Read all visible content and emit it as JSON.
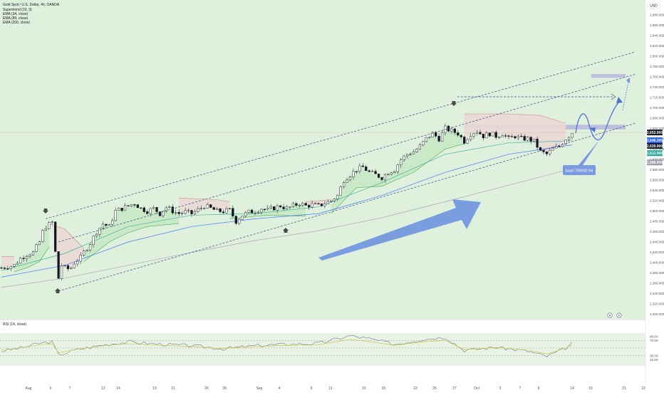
{
  "legend": {
    "title": "Gold Spot / U.S. Dollar, 4h, OANDA",
    "indicators": [
      "Supertrend (10, 3)",
      "EMA (34, close)",
      "EMA (89, close)",
      "EMA (200, close)"
    ]
  },
  "currency": "USD",
  "annotation": {
    "text": "touch TREND H4"
  },
  "rsi": {
    "label": "RSI (14, close)"
  },
  "colors": {
    "bg_green": "#dff1dd",
    "candle": "#131722",
    "supertrend_green_fill": "#c8e8c4",
    "supertrend_red_fill": "#ead8d4",
    "ema34": "#26a69a",
    "ema89": "#2962ff",
    "ema200": "#9e9aa8",
    "channel": "#3c4a8a",
    "arrow": "#6f93e0",
    "zone": "#b8b6dc",
    "rsi_line": "#787b86",
    "rsi_ma": "#d2c02a"
  },
  "chart_data": [
    {
      "type": "line",
      "series_kind": "candlestick",
      "x_ticks": [
        "Aug",
        "5",
        "7",
        "12",
        "14",
        "19",
        "21",
        "26",
        "28",
        "Sep",
        "4",
        "9",
        "11",
        "16",
        "18",
        "23",
        "25",
        "27",
        "Oct",
        "3",
        "7",
        "9",
        "14",
        "16",
        "21",
        "23"
      ],
      "y_ticks": [
        "2,880.000",
        "2,860.000",
        "2,840.000",
        "2,820.000",
        "2,800.000",
        "2,780.000",
        "2,760.000",
        "2,740.000",
        "2,720.000",
        "2,700.000",
        "2,680.000",
        "2,660.000",
        "2,640.000",
        "2,620.000",
        "2,600.000",
        "2,580.000",
        "2,560.000",
        "2,540.000",
        "2,520.000",
        "2,500.000",
        "2,480.000",
        "2,460.000",
        "2,440.000",
        "2,420.000",
        "2,400.000",
        "2,380.000",
        "2,360.000",
        "2,340.000",
        "2,320.000",
        "2,300.000"
      ],
      "ylim": [
        2294,
        2903
      ],
      "price_tags": [
        {
          "label": "2,652.000",
          "value": 2652,
          "color": "#131722"
        },
        {
          "label": "2,646.200",
          "value": 2637,
          "color": "#2962ff"
        },
        {
          "label": "2,630.000",
          "value": 2626,
          "color": "#131722"
        },
        {
          "label": "2,612.000",
          "value": 2612,
          "color": "#26a69a"
        },
        {
          "label": "2,588.500",
          "value": 2594,
          "color": "#9e9aa8"
        }
      ],
      "close_path": [
        [
          0,
          2390
        ],
        [
          4,
          2395
        ],
        [
          6,
          2408
        ],
        [
          8,
          2416
        ],
        [
          10,
          2420
        ],
        [
          12,
          2440
        ],
        [
          13,
          2460
        ],
        [
          14,
          2470
        ],
        [
          16,
          2478
        ],
        [
          17,
          2420
        ],
        [
          18,
          2370
        ],
        [
          19,
          2395
        ],
        [
          20,
          2390
        ],
        [
          21,
          2388
        ],
        [
          22,
          2390
        ],
        [
          23,
          2400
        ],
        [
          25,
          2410
        ],
        [
          26,
          2420
        ],
        [
          28,
          2438
        ],
        [
          30,
          2460
        ],
        [
          32,
          2475
        ],
        [
          34,
          2470
        ],
        [
          36,
          2500
        ],
        [
          38,
          2505
        ],
        [
          40,
          2510
        ],
        [
          42,
          2515
        ],
        [
          44,
          2505
        ],
        [
          46,
          2500
        ],
        [
          48,
          2505
        ],
        [
          50,
          2495
        ],
        [
          52,
          2508
        ],
        [
          54,
          2500
        ],
        [
          56,
          2495
        ],
        [
          58,
          2498
        ],
        [
          60,
          2495
        ],
        [
          62,
          2502
        ],
        [
          64,
          2510
        ],
        [
          66,
          2505
        ],
        [
          68,
          2500
        ],
        [
          70,
          2499
        ],
        [
          72,
          2502
        ],
        [
          74,
          2480
        ],
        [
          76,
          2492
        ],
        [
          78,
          2498
        ],
        [
          80,
          2500
        ],
        [
          82,
          2505
        ],
        [
          84,
          2502
        ],
        [
          86,
          2506
        ],
        [
          88,
          2510
        ],
        [
          90,
          2505
        ],
        [
          92,
          2510
        ],
        [
          94,
          2515
        ],
        [
          96,
          2510
        ],
        [
          98,
          2512
        ],
        [
          100,
          2510
        ],
        [
          102,
          2515
        ],
        [
          104,
          2520
        ],
        [
          106,
          2530
        ],
        [
          108,
          2560
        ],
        [
          110,
          2570
        ],
        [
          112,
          2580
        ],
        [
          114,
          2585
        ],
        [
          116,
          2575
        ],
        [
          118,
          2570
        ],
        [
          120,
          2565
        ],
        [
          122,
          2575
        ],
        [
          124,
          2580
        ],
        [
          126,
          2600
        ],
        [
          128,
          2610
        ],
        [
          130,
          2615
        ],
        [
          132,
          2625
        ],
        [
          134,
          2640
        ],
        [
          136,
          2650
        ],
        [
          138,
          2640
        ],
        [
          140,
          2660
        ],
        [
          142,
          2655
        ],
        [
          144,
          2650
        ],
        [
          146,
          2635
        ],
        [
          148,
          2650
        ],
        [
          150,
          2655
        ],
        [
          152,
          2645
        ],
        [
          154,
          2650
        ],
        [
          156,
          2645
        ],
        [
          158,
          2650
        ],
        [
          160,
          2640
        ],
        [
          162,
          2645
        ],
        [
          164,
          2640
        ],
        [
          166,
          2640
        ],
        [
          168,
          2635
        ],
        [
          170,
          2615
        ],
        [
          172,
          2610
        ],
        [
          174,
          2620
        ],
        [
          176,
          2625
        ],
        [
          178,
          2640
        ],
        [
          180,
          2652
        ]
      ],
      "supertrend_segments": [
        {
          "trend": "down",
          "values": [
            [
              0,
              2412
            ],
            [
              4,
              2412
            ]
          ]
        },
        {
          "trend": "up",
          "values": [
            [
              4,
              2382
            ],
            [
              8,
              2390
            ],
            [
              12,
              2402
            ],
            [
              15,
              2430
            ]
          ]
        },
        {
          "trend": "down",
          "values": [
            [
              15,
              2475
            ],
            [
              20,
              2465
            ],
            [
              24,
              2440
            ],
            [
              26,
              2428
            ]
          ]
        },
        {
          "trend": "up",
          "values": [
            [
              26,
              2402
            ],
            [
              34,
              2440
            ],
            [
              40,
              2458
            ],
            [
              46,
              2470
            ],
            [
              56,
              2476
            ]
          ]
        },
        {
          "trend": "down",
          "values": [
            [
              56,
              2525
            ],
            [
              68,
              2522
            ],
            [
              72,
              2518
            ]
          ]
        },
        {
          "trend": "up",
          "values": [
            [
              72,
              2485
            ],
            [
              84,
              2492
            ],
            [
              96,
              2490
            ]
          ]
        },
        {
          "trend": "down",
          "values": [
            [
              96,
              2518
            ],
            [
              104,
              2522
            ]
          ]
        },
        {
          "trend": "up",
          "values": [
            [
              104,
              2495
            ],
            [
              112,
              2545
            ],
            [
              120,
              2548
            ],
            [
              130,
              2575
            ],
            [
              140,
              2620
            ],
            [
              146,
              2630
            ]
          ]
        },
        {
          "trend": "down",
          "values": [
            [
              146,
              2688
            ],
            [
              160,
              2688
            ],
            [
              170,
              2685
            ],
            [
              178,
              2670
            ]
          ]
        }
      ],
      "ema34": [
        [
          0,
          2385
        ],
        [
          20,
          2418
        ],
        [
          40,
          2470
        ],
        [
          60,
          2492
        ],
        [
          80,
          2495
        ],
        [
          100,
          2508
        ],
        [
          120,
          2555
        ],
        [
          140,
          2610
        ],
        [
          160,
          2632
        ],
        [
          180,
          2636
        ]
      ],
      "ema89": [
        [
          0,
          2372
        ],
        [
          20,
          2395
        ],
        [
          40,
          2440
        ],
        [
          60,
          2470
        ],
        [
          80,
          2485
        ],
        [
          100,
          2495
        ],
        [
          120,
          2530
        ],
        [
          140,
          2575
        ],
        [
          160,
          2610
        ],
        [
          180,
          2628
        ]
      ],
      "ema200": [
        [
          0,
          2352
        ],
        [
          20,
          2370
        ],
        [
          40,
          2395
        ],
        [
          60,
          2420
        ],
        [
          80,
          2443
        ],
        [
          100,
          2462
        ],
        [
          120,
          2487
        ],
        [
          140,
          2518
        ],
        [
          160,
          2550
        ],
        [
          180,
          2582
        ]
      ],
      "channel_upper": [
        [
          14,
          2485
        ],
        [
          200,
          2808
        ]
      ],
      "channel_lower": [
        [
          18,
          2345
        ],
        [
          200,
          2670
        ]
      ],
      "channel_mid": [
        [
          18,
          2440
        ],
        [
          200,
          2765
        ]
      ],
      "resistance_zone": {
        "from": 146,
        "to": 200,
        "y0": 2660,
        "y1": 2665
      },
      "target_zone": {
        "from": 186,
        "to": 200,
        "y0": 2760,
        "y1": 2763
      },
      "rsi": {
        "ylim": [
          0,
          100
        ],
        "levels": [
          70,
          50,
          30
        ],
        "values": [
          [
            0,
            42
          ],
          [
            6,
            50
          ],
          [
            12,
            62
          ],
          [
            16,
            66
          ],
          [
            18,
            32
          ],
          [
            24,
            46
          ],
          [
            32,
            58
          ],
          [
            40,
            66
          ],
          [
            50,
            60
          ],
          [
            60,
            56
          ],
          [
            70,
            48
          ],
          [
            80,
            56
          ],
          [
            90,
            60
          ],
          [
            100,
            62
          ],
          [
            110,
            82
          ],
          [
            116,
            74
          ],
          [
            124,
            60
          ],
          [
            134,
            74
          ],
          [
            140,
            78
          ],
          [
            146,
            44
          ],
          [
            156,
            52
          ],
          [
            166,
            42
          ],
          [
            172,
            28
          ],
          [
            178,
            50
          ],
          [
            180,
            61
          ]
        ]
      }
    }
  ]
}
